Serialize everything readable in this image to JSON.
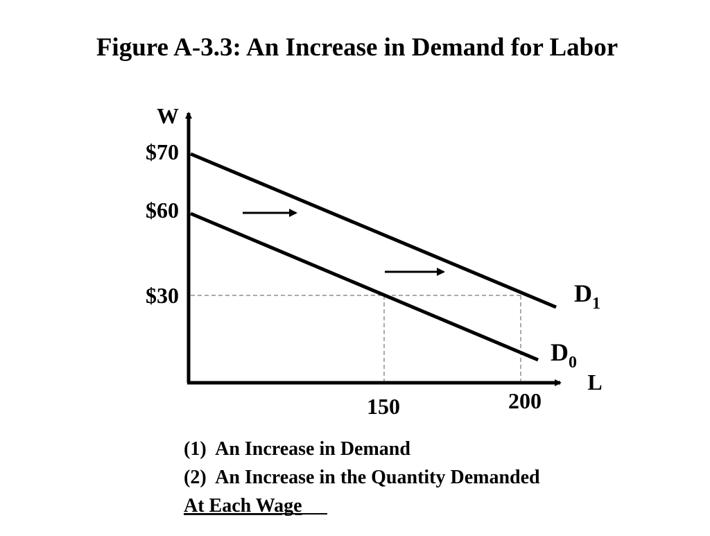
{
  "header": {
    "title": "Figure A-3.3: An Increase in Demand for Labor"
  },
  "axes": {
    "y_label": "W",
    "x_label": "L",
    "y_tick_labels": [
      "$70",
      "$60",
      "$30"
    ],
    "x_tick_labels": [
      "150",
      "200"
    ]
  },
  "curves": [
    {
      "label": "D",
      "subscript": "1"
    },
    {
      "label": "D",
      "subscript": "0"
    }
  ],
  "notes": [
    "(1)  An Increase in Demand",
    "(2)  An Increase in the Quantity Demanded",
    "At Each Wage"
  ]
}
